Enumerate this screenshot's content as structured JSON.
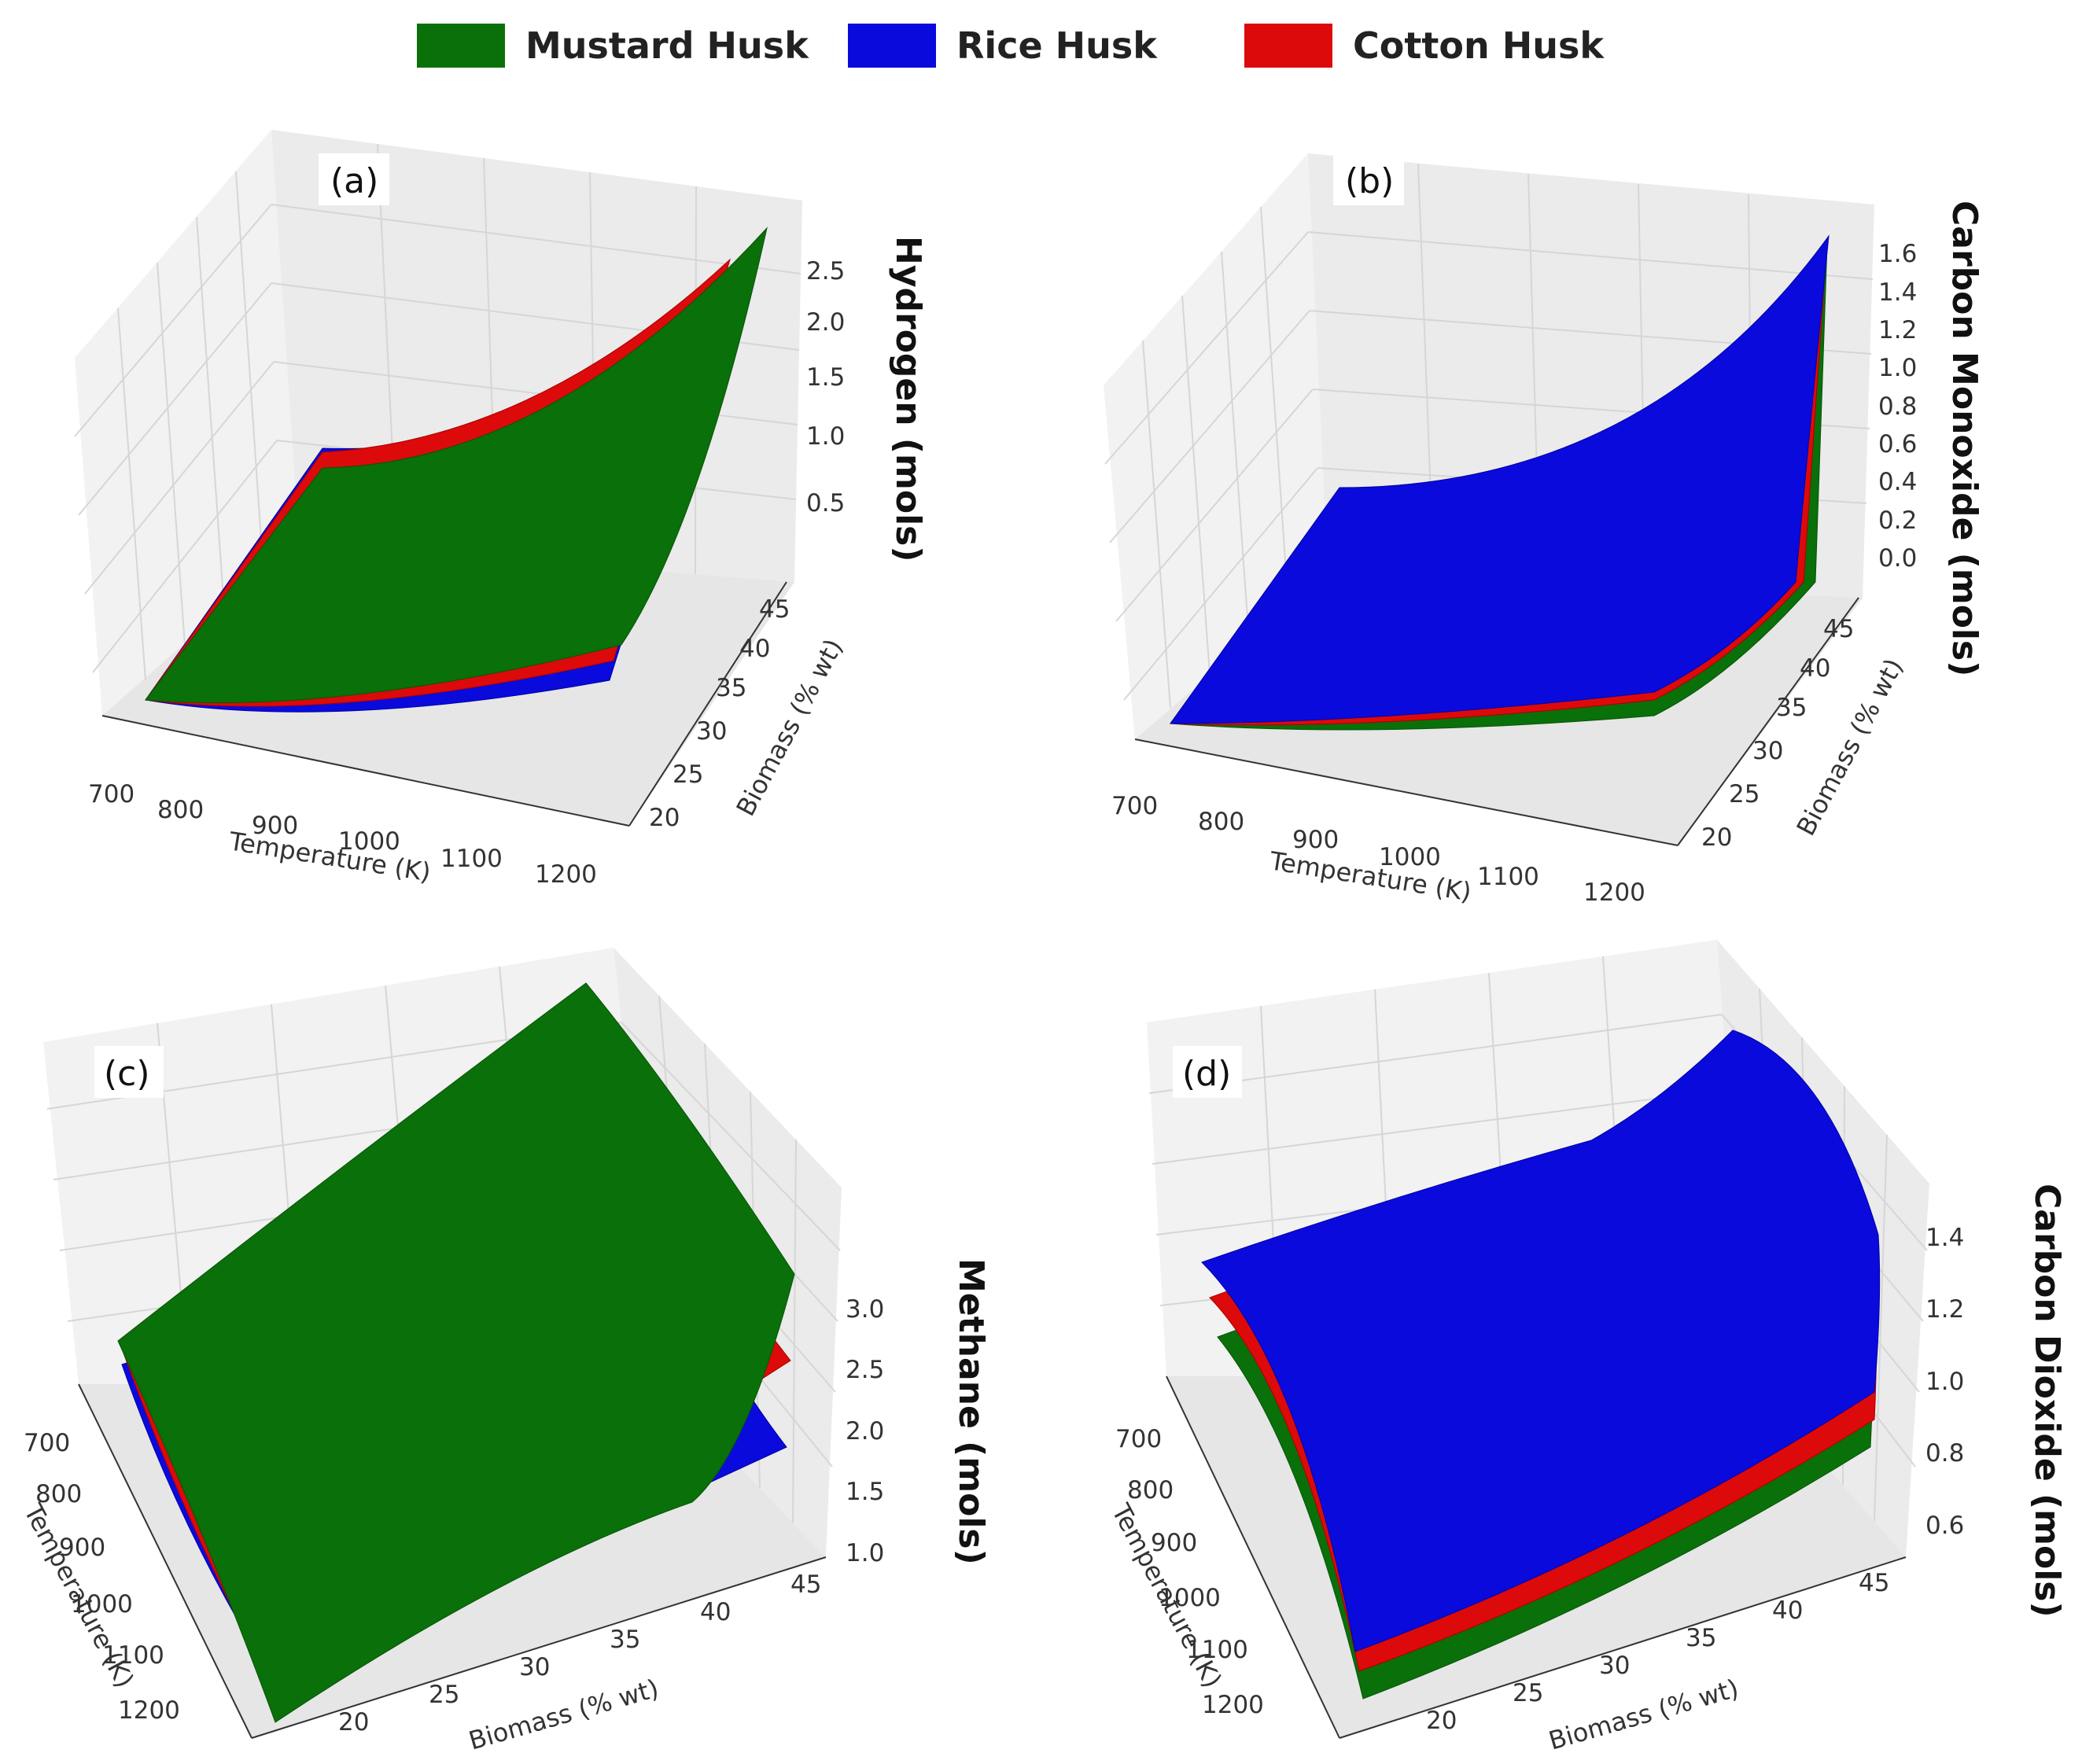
{
  "legend": {
    "items": [
      {
        "label": "Mustard Husk",
        "color": "#0a700a"
      },
      {
        "label": "Rice Husk",
        "color": "#0a0adc"
      },
      {
        "label": "Cotton Husk",
        "color": "#dc0a0a"
      }
    ]
  },
  "chart_data": [
    {
      "panel": "(a)",
      "type": "surface",
      "xlabel": "Temperature (K)",
      "ylabel": "Biomass (% wt)",
      "zlabel": "Hydrogen (mols)",
      "x_ticks": [
        "700",
        "800",
        "900",
        "1000",
        "1100",
        "1200"
      ],
      "y_ticks": [
        "20",
        "25",
        "30",
        "35",
        "40",
        "45"
      ],
      "z_ticks": [
        "0.5",
        "1.0",
        "1.5",
        "2.0",
        "2.5"
      ],
      "x_range": [
        700,
        1200
      ],
      "y_range": [
        20,
        45
      ],
      "z_range": [
        0.1,
        2.9
      ],
      "series": [
        {
          "name": "Mustard Husk",
          "corners": {
            "Tmin_Bmin": 0.1,
            "Tmax_Bmin": 0.3,
            "Tmax_Bmax": 2.8,
            "Tmin_Bmax": 1.1
          }
        },
        {
          "name": "Cotton Husk",
          "corners": {
            "Tmin_Bmin": 0.1,
            "Tmax_Bmin": 0.25,
            "Tmax_Bmax": 2.55,
            "Tmin_Bmax": 1.0
          }
        },
        {
          "name": "Rice Husk",
          "corners": {
            "Tmin_Bmin": 0.1,
            "Tmax_Bmin": 0.2,
            "Tmax_Bmax": 2.1,
            "Tmin_Bmax": 0.95
          }
        }
      ]
    },
    {
      "panel": "(b)",
      "type": "surface",
      "xlabel": "Temperature (K)",
      "ylabel": "Biomass (% wt)",
      "zlabel": "Carbon Monoxide (mols)",
      "x_ticks": [
        "700",
        "800",
        "900",
        "1000",
        "1100",
        "1200"
      ],
      "y_ticks": [
        "20",
        "25",
        "30",
        "35",
        "40",
        "45"
      ],
      "z_ticks": [
        "0.0",
        "0.2",
        "0.4",
        "0.6",
        "0.8",
        "1.0",
        "1.2",
        "1.4",
        "1.6"
      ],
      "x_range": [
        700,
        1200
      ],
      "y_range": [
        20,
        45
      ],
      "z_range": [
        0.0,
        1.65
      ],
      "series": [
        {
          "name": "Mustard Husk",
          "corners": {
            "Tmin_Bmin": 0.0,
            "Tmax_Bmin": 0.1,
            "Tmax_Bmax": 1.62,
            "Tmin_Bmax": 0.45
          }
        },
        {
          "name": "Cotton Husk",
          "corners": {
            "Tmin_Bmin": 0.0,
            "Tmax_Bmin": 0.14,
            "Tmax_Bmax": 1.63,
            "Tmin_Bmax": 0.45
          }
        },
        {
          "name": "Rice Husk",
          "corners": {
            "Tmin_Bmin": 0.0,
            "Tmax_Bmin": 0.16,
            "Tmax_Bmax": 1.64,
            "Tmin_Bmax": 0.45
          }
        }
      ]
    },
    {
      "panel": "(c)",
      "type": "surface",
      "xlabel": "Biomass (% wt)",
      "ylabel": "Temperature (K)",
      "zlabel": "Methane (mols)",
      "x_ticks": [
        "20",
        "25",
        "30",
        "35",
        "40",
        "45"
      ],
      "y_ticks": [
        "700",
        "800",
        "900",
        "1000",
        "1100",
        "1200"
      ],
      "z_ticks": [
        "1.0",
        "1.5",
        "2.0",
        "2.5",
        "3.0"
      ],
      "x_range": [
        20,
        45
      ],
      "y_range": [
        700,
        1200
      ],
      "z_range": [
        0.8,
        3.3
      ],
      "series": [
        {
          "name": "Mustard Husk",
          "corners": {
            "Bmin_Tmin": 2.6,
            "Bmax_Tmin": 3.4,
            "Bmax_Tmax": 2.4,
            "Bmin_Tmax": 0.8
          }
        },
        {
          "name": "Cotton Husk",
          "corners": {
            "Bmin_Tmin": 2.3,
            "Bmax_Tmin": 2.9,
            "Bmax_Tmax": 2.0,
            "Bmin_Tmax": 0.8
          }
        },
        {
          "name": "Rice Husk",
          "corners": {
            "Bmin_Tmin": 2.2,
            "Bmax_Tmin": 2.5,
            "Bmax_Tmax": 1.8,
            "Bmin_Tmax": 0.8
          }
        }
      ]
    },
    {
      "panel": "(d)",
      "type": "surface",
      "xlabel": "Biomass (% wt)",
      "ylabel": "Temperature (K)",
      "zlabel": "Carbon Dioxide (mols)",
      "x_ticks": [
        "20",
        "25",
        "30",
        "35",
        "40",
        "45"
      ],
      "y_ticks": [
        "700",
        "800",
        "900",
        "1000",
        "1100",
        "1200"
      ],
      "z_ticks": [
        "0.6",
        "0.8",
        "1.0",
        "1.2",
        "1.4"
      ],
      "x_range": [
        20,
        45
      ],
      "y_range": [
        700,
        1200
      ],
      "z_range": [
        0.5,
        1.45
      ],
      "series": [
        {
          "name": "Mustard Husk",
          "corners": {
            "Bmin_Tmin": 1.05,
            "Bmax_Tmin": 1.3,
            "Bmax_Tmax": 1.1,
            "Bmin_Tmax": 0.55
          }
        },
        {
          "name": "Cotton Husk",
          "corners": {
            "Bmin_Tmin": 1.1,
            "Bmax_Tmin": 1.35,
            "Bmax_Tmax": 1.15,
            "Bmin_Tmax": 0.6
          }
        },
        {
          "name": "Rice Husk",
          "corners": {
            "Bmin_Tmin": 1.15,
            "Bmax_Tmin": 1.42,
            "Bmax_Tmax": 1.2,
            "Bmin_Tmax": 0.66
          }
        }
      ]
    }
  ]
}
